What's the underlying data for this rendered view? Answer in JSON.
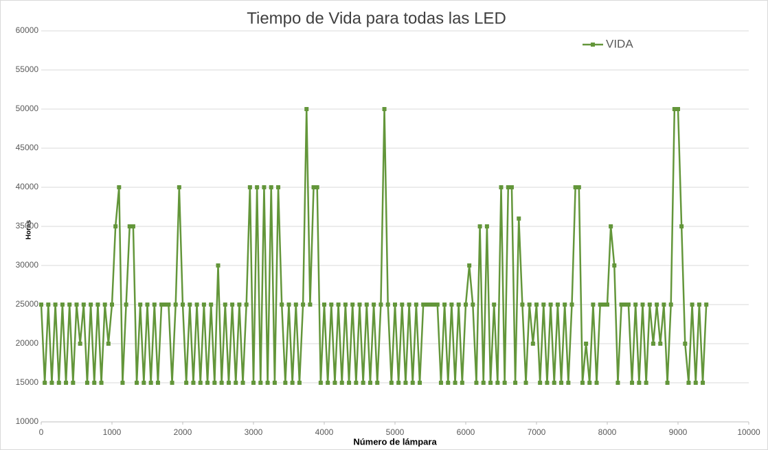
{
  "chart_data": {
    "type": "line",
    "title": "Tiempo de Vida para todas las LED",
    "xlabel": "Número de lámpara",
    "ylabel": "Horas",
    "x": [
      0,
      50,
      100,
      150,
      200,
      250,
      300,
      350,
      400,
      450,
      500,
      550,
      600,
      650,
      700,
      750,
      800,
      850,
      900,
      950,
      1000,
      1050,
      1100,
      1150,
      1200,
      1250,
      1300,
      1350,
      1400,
      1450,
      1500,
      1550,
      1600,
      1650,
      1700,
      1750,
      1800,
      1850,
      1900,
      1950,
      2000,
      2050,
      2100,
      2150,
      2200,
      2250,
      2300,
      2350,
      2400,
      2450,
      2500,
      2550,
      2600,
      2650,
      2700,
      2750,
      2800,
      2850,
      2900,
      2950,
      3000,
      3050,
      3100,
      3150,
      3200,
      3250,
      3300,
      3350,
      3400,
      3450,
      3500,
      3550,
      3600,
      3650,
      3700,
      3750,
      3800,
      3850,
      3900,
      3950,
      4000,
      4050,
      4100,
      4150,
      4200,
      4250,
      4300,
      4350,
      4400,
      4450,
      4500,
      4550,
      4600,
      4650,
      4700,
      4750,
      4800,
      4850,
      4900,
      4950,
      5000,
      5050,
      5100,
      5150,
      5200,
      5250,
      5300,
      5350,
      5400,
      5450,
      5500,
      5550,
      5600,
      5650,
      5700,
      5750,
      5800,
      5850,
      5900,
      5950,
      6000,
      6050,
      6100,
      6150,
      6200,
      6250,
      6300,
      6350,
      6400,
      6450,
      6500,
      6550,
      6600,
      6650,
      6700,
      6750,
      6800,
      6850,
      6900,
      6950,
      7000,
      7050,
      7100,
      7150,
      7200,
      7250,
      7300,
      7350,
      7400,
      7450,
      7500,
      7550,
      7600,
      7650,
      7700,
      7750,
      7800,
      7850,
      7900,
      7950,
      8000,
      8050,
      8100,
      8150,
      8200,
      8250,
      8300,
      8350,
      8400,
      8450,
      8500,
      8550,
      8600,
      8650,
      8700,
      8750,
      8800,
      8850,
      8900,
      8950,
      9000,
      9050,
      9100,
      9150,
      9200,
      9250,
      9300,
      9350,
      9400
    ],
    "series": [
      {
        "name": "VIDA",
        "color": "#63963a",
        "values": [
          25000,
          15000,
          25000,
          15000,
          25000,
          15000,
          25000,
          15000,
          25000,
          15000,
          25000,
          20000,
          25000,
          15000,
          25000,
          15000,
          25000,
          15000,
          25000,
          20000,
          25000,
          35000,
          40000,
          15000,
          25000,
          35000,
          35000,
          15000,
          25000,
          15000,
          25000,
          15000,
          25000,
          15000,
          25000,
          25000,
          25000,
          15000,
          25000,
          40000,
          25000,
          15000,
          25000,
          15000,
          25000,
          15000,
          25000,
          15000,
          25000,
          15000,
          30000,
          15000,
          25000,
          15000,
          25000,
          15000,
          25000,
          15000,
          25000,
          40000,
          15000,
          40000,
          15000,
          40000,
          15000,
          40000,
          15000,
          40000,
          25000,
          15000,
          25000,
          15000,
          25000,
          15000,
          25000,
          50000,
          25000,
          40000,
          40000,
          15000,
          25000,
          15000,
          25000,
          15000,
          25000,
          15000,
          25000,
          15000,
          25000,
          15000,
          25000,
          15000,
          25000,
          15000,
          25000,
          15000,
          25000,
          50000,
          25000,
          15000,
          25000,
          15000,
          25000,
          15000,
          25000,
          15000,
          25000,
          15000,
          25000,
          25000,
          25000,
          25000,
          25000,
          15000,
          25000,
          15000,
          25000,
          15000,
          25000,
          15000,
          25000,
          30000,
          25000,
          15000,
          35000,
          15000,
          35000,
          15000,
          25000,
          15000,
          40000,
          15000,
          40000,
          40000,
          15000,
          36000,
          25000,
          15000,
          25000,
          20000,
          25000,
          15000,
          25000,
          15000,
          25000,
          15000,
          25000,
          15000,
          25000,
          15000,
          25000,
          40000,
          40000,
          15000,
          20000,
          15000,
          25000,
          15000,
          25000,
          25000,
          25000,
          35000,
          30000,
          15000,
          25000,
          25000,
          25000,
          15000,
          25000,
          15000,
          25000,
          15000,
          25000,
          20000,
          25000,
          20000,
          25000,
          15000,
          25000,
          50000,
          50000,
          35000,
          20000,
          15000,
          25000,
          15000,
          25000,
          15000,
          25000
        ]
      }
    ],
    "xlim": [
      0,
      10000
    ],
    "xticks": [
      0,
      1000,
      2000,
      3000,
      4000,
      5000,
      6000,
      7000,
      8000,
      9000,
      10000
    ],
    "ylim": [
      10000,
      60000
    ],
    "yticks": [
      10000,
      15000,
      20000,
      25000,
      30000,
      35000,
      40000,
      45000,
      50000,
      55000,
      60000
    ],
    "grid": true,
    "legend": "upper right"
  }
}
